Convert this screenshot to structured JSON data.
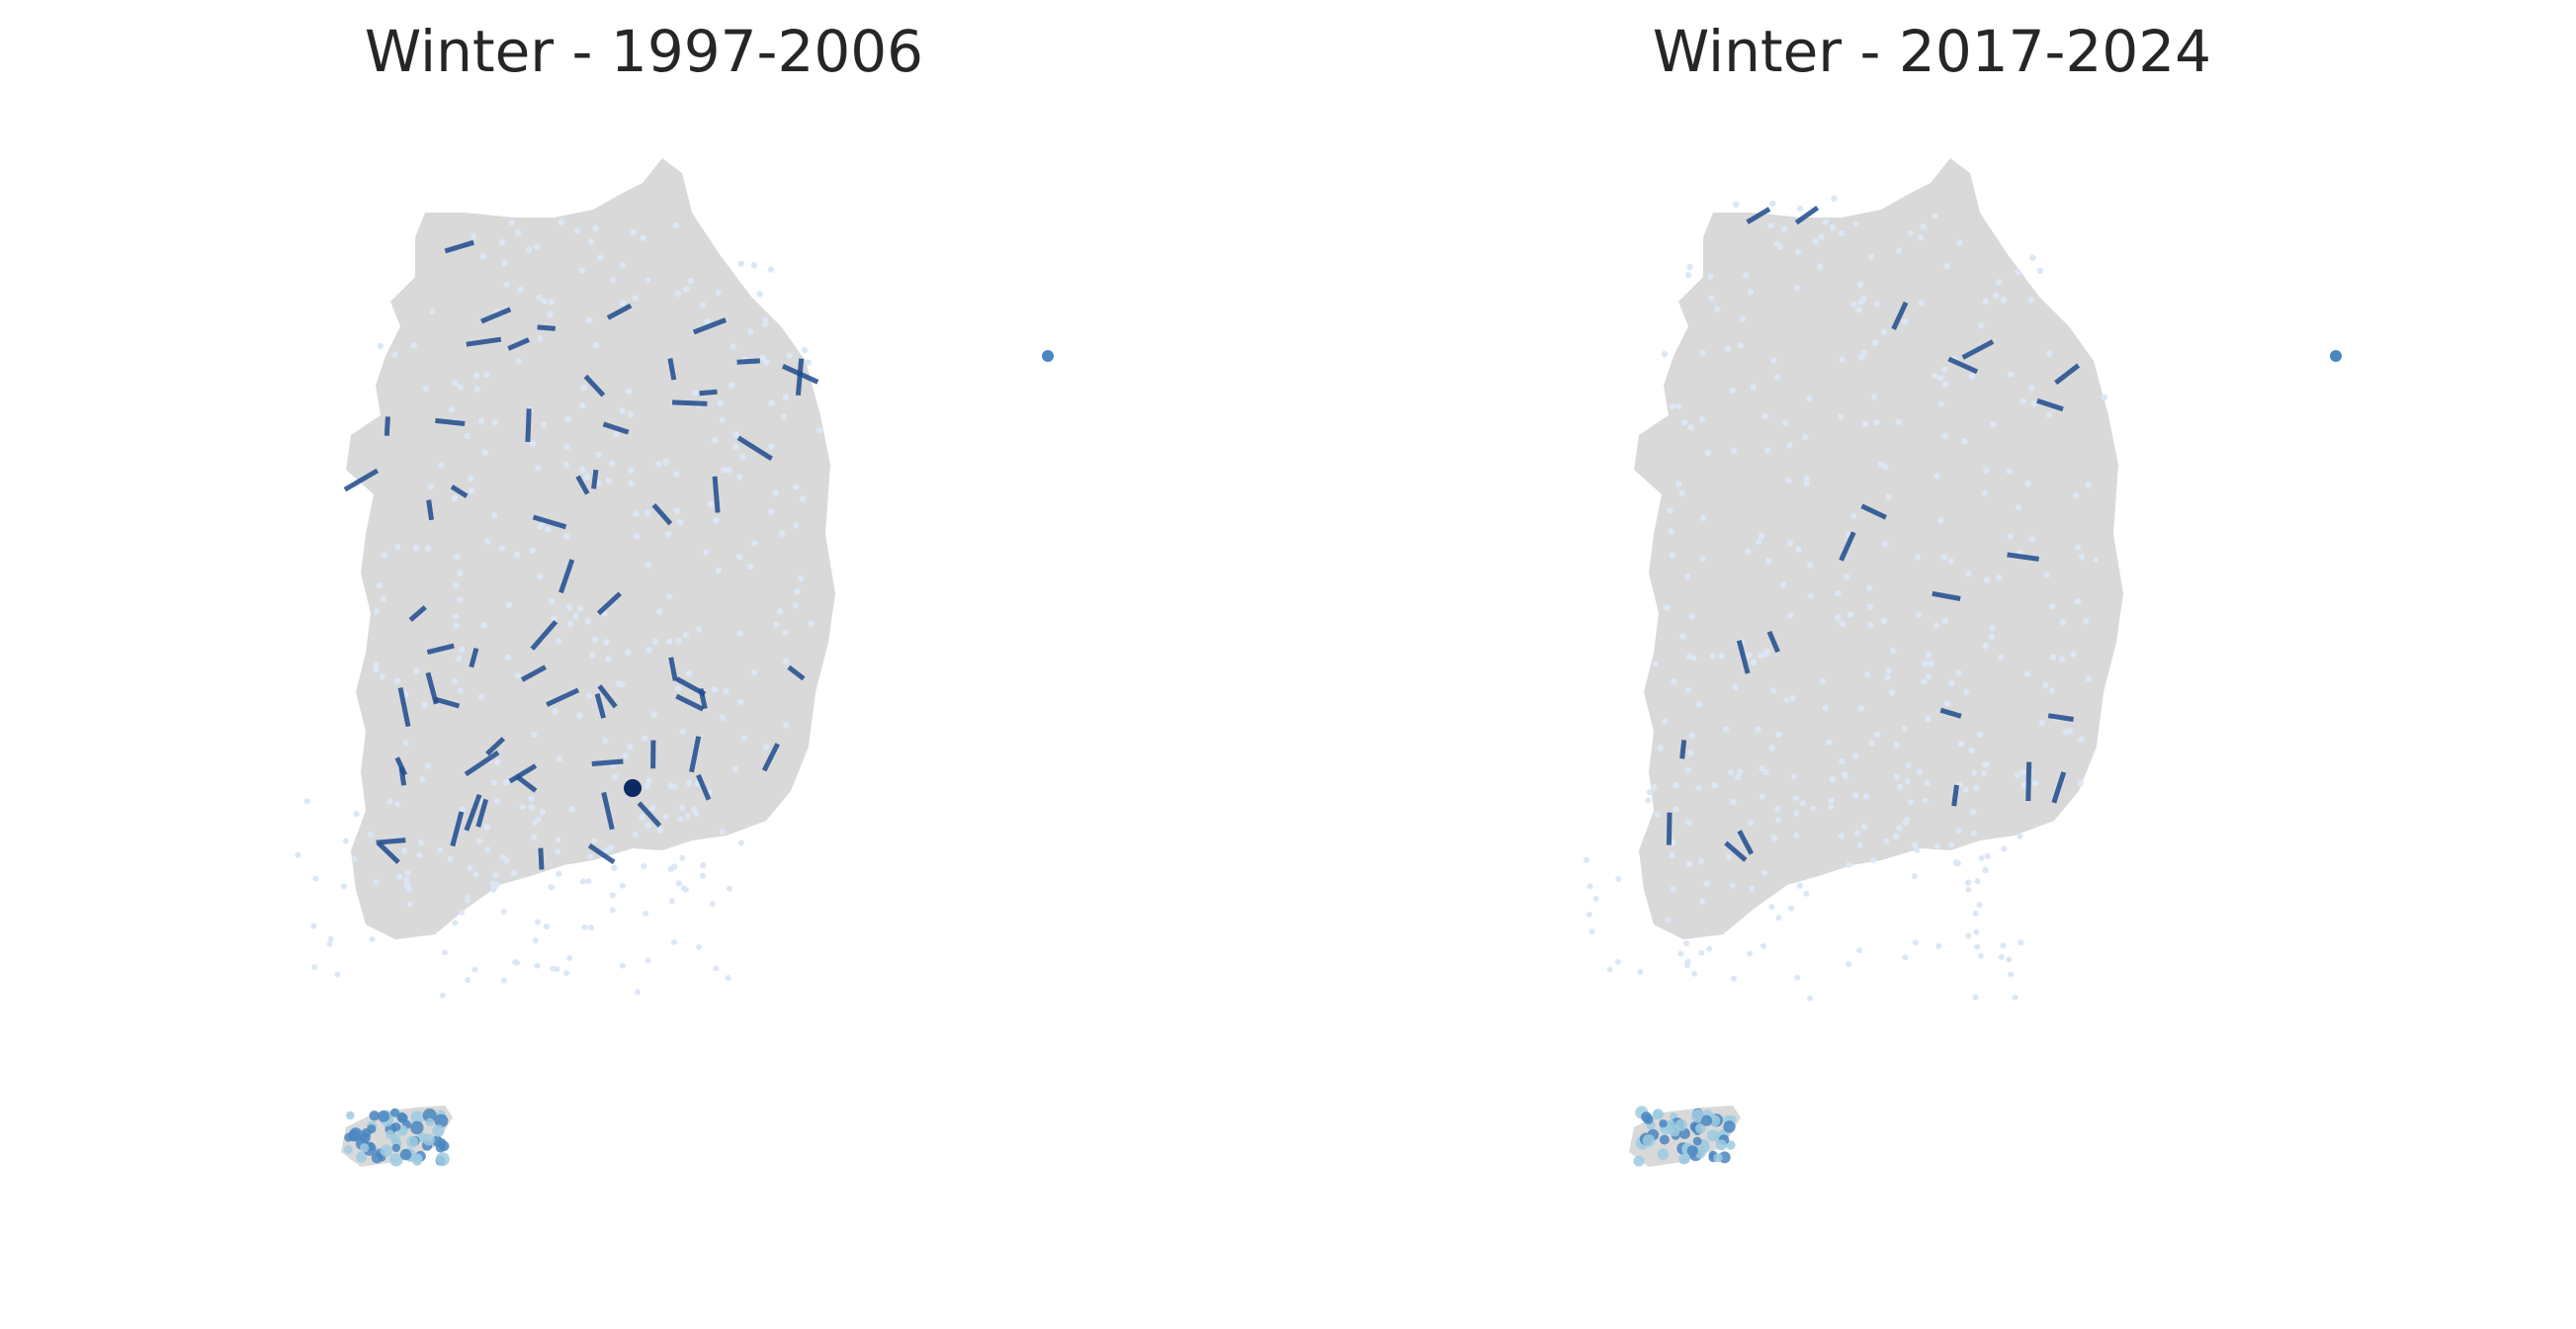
{
  "land_color": "#d9d9d9",
  "station_light": "#dbe7f5",
  "station_mid": "#9ecae1",
  "station_dark": "#4a86c0",
  "link_color": "#1f4b8e",
  "hub_color": "#0b2a63",
  "maps": [
    {
      "title": "Winter - 1997-2006",
      "highlight_marker": "filled-circle-marker"
    },
    {
      "title": "Winter - 2017-2024"
    }
  ]
}
